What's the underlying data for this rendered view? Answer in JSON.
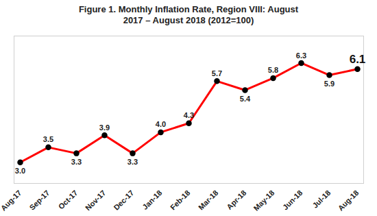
{
  "chart_data": {
    "type": "line",
    "title": "Figure 1. Monthly Inflation Rate, Region VIII: August 2017 – August 2018 (2012=100)",
    "categories": [
      "Aug-17",
      "Sep-17",
      "Oct-17",
      "Nov-17",
      "Dec-17",
      "Jan-18",
      "Feb-18",
      "Mar-18",
      "Apr-18",
      "May-18",
      "Jun-18",
      "Jul-18",
      "Aug-18"
    ],
    "values": [
      3.0,
      3.5,
      3.3,
      3.9,
      3.3,
      4.0,
      4.3,
      5.7,
      5.4,
      5.8,
      6.3,
      5.9,
      6.1
    ],
    "value_labels": [
      "3.0",
      "3.5",
      "3.3",
      "3.9",
      "3.3",
      "4.0",
      "4.3",
      "5.7",
      "5.4",
      "5.8",
      "6.3",
      "5.9",
      "6.1"
    ],
    "color": "#ff0000",
    "marker": "circle",
    "data_labels": true,
    "ylim": [
      2.3,
      7.2
    ],
    "tick_labels": "x",
    "grid": false
  }
}
